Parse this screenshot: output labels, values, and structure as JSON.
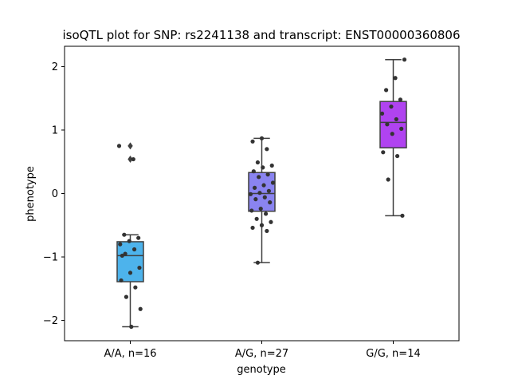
{
  "chart_data": {
    "type": "box",
    "title": "isoQTL plot for SNP: rs2241138 and transcript: ENST00000360806",
    "xlabel": "genotype",
    "ylabel": "phenotype",
    "ylim": [
      -2.32,
      2.32
    ],
    "yticks": [
      -2,
      -1,
      0,
      1,
      2
    ],
    "ytick_labels": [
      "−2",
      "−1",
      "0",
      "1",
      "2"
    ],
    "grid": false,
    "categories": [
      "A/A, n=16",
      "A/G, n=27",
      "G/G, n=14"
    ],
    "colors": [
      "#4db3ec",
      "#8a84f0",
      "#b043f0"
    ],
    "boxes": [
      {
        "category": "A/A, n=16",
        "whisker_low": -2.1,
        "q1": -1.39,
        "median": -0.98,
        "q3": -0.76,
        "whisker_high": -0.65,
        "outliers": [
          0.75,
          0.54
        ]
      },
      {
        "category": "A/G, n=27",
        "whisker_low": -1.09,
        "q1": -0.28,
        "median": 0.0,
        "q3": 0.33,
        "whisker_high": 0.87,
        "outliers": []
      },
      {
        "category": "G/G, n=14",
        "whisker_low": -0.35,
        "q1": 0.72,
        "median": 1.12,
        "q3": 1.45,
        "whisker_high": 2.11,
        "outliers": []
      }
    ],
    "points": [
      {
        "category": "A/A, n=16",
        "values": [
          0.75,
          0.54,
          -0.65,
          -0.7,
          -0.75,
          -0.8,
          -0.88,
          -0.95,
          -1.17,
          -1.25,
          -1.37,
          -1.48,
          -1.63,
          -1.82,
          -2.1,
          -0.98
        ]
      },
      {
        "category": "A/G, n=27",
        "values": [
          0.87,
          0.82,
          0.7,
          0.49,
          0.44,
          0.41,
          0.35,
          0.3,
          0.26,
          0.17,
          0.13,
          0.09,
          0.04,
          0.01,
          -0.01,
          -0.06,
          -0.09,
          -0.14,
          -0.24,
          -0.27,
          -0.32,
          -0.4,
          -0.45,
          -0.5,
          -0.54,
          -0.59,
          -1.09
        ]
      },
      {
        "category": "G/G, n=14",
        "values": [
          2.11,
          1.82,
          1.63,
          1.48,
          1.37,
          1.26,
          1.17,
          1.09,
          1.02,
          0.94,
          0.65,
          0.59,
          0.22,
          -0.35
        ]
      }
    ]
  }
}
